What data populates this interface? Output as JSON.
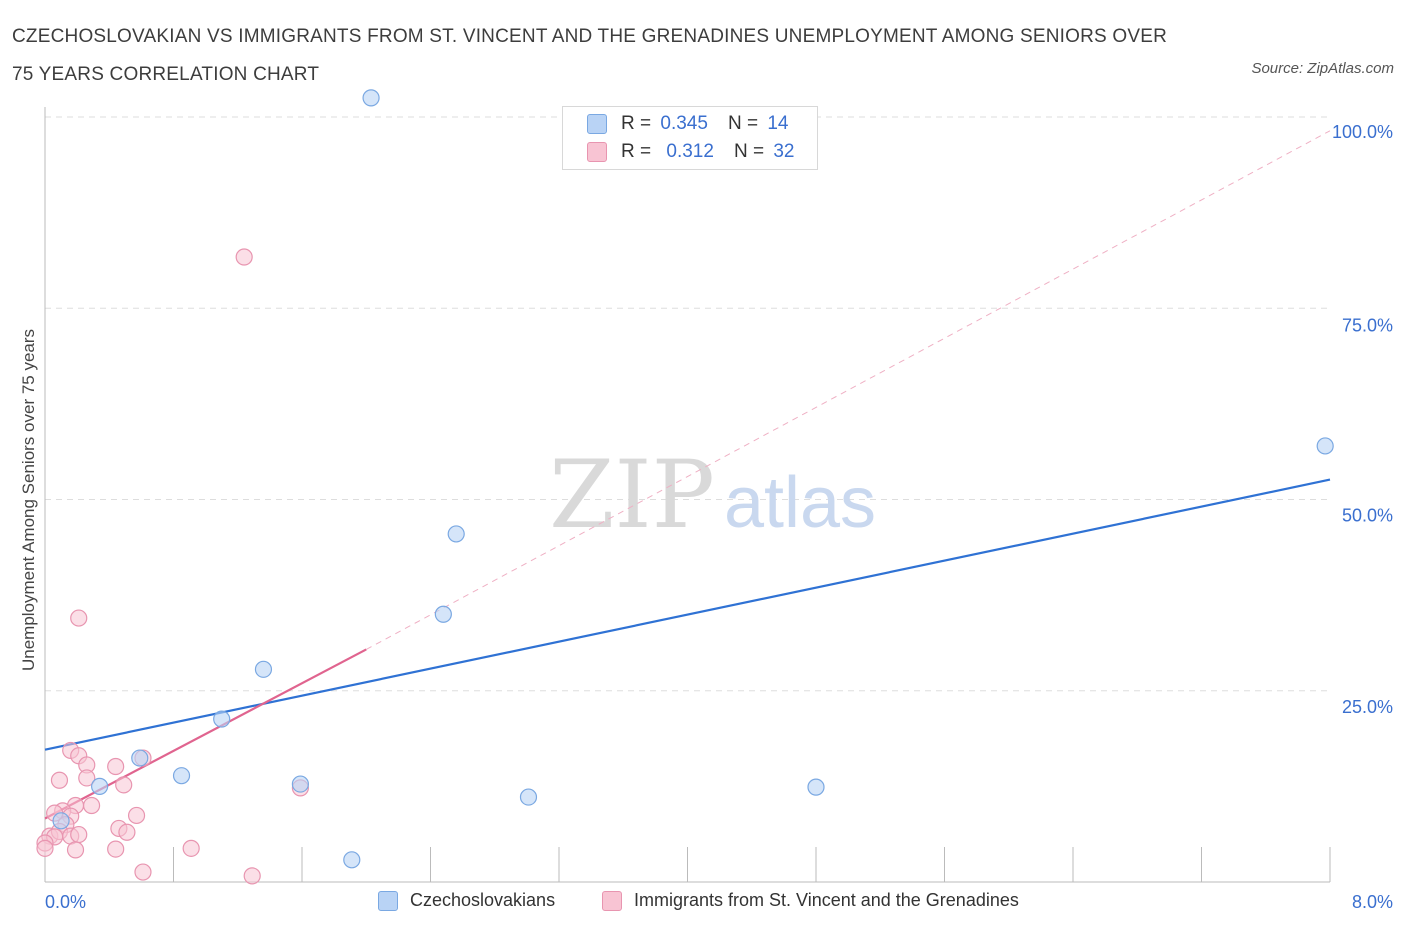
{
  "header": {
    "title": "CZECHOSLOVAKIAN VS IMMIGRANTS FROM ST. VINCENT AND THE GRENADINES UNEMPLOYMENT AMONG SENIORS OVER 75 YEARS CORRELATION CHART",
    "source": "Source: ZipAtlas.com"
  },
  "watermark": {
    "zip": "ZIP",
    "atlas": "atlas"
  },
  "legend": {
    "rows": [
      {
        "r_label": "R =",
        "r_value": "0.345",
        "n_label": "N =",
        "n_value": "14"
      },
      {
        "r_label": "R =",
        "r_value": "0.312",
        "n_label": "N =",
        "n_value": "32"
      }
    ]
  },
  "bottom_legend": {
    "series1": "Czechoslovakians",
    "series2": "Immigrants from St. Vincent and the Grenadines"
  },
  "colors": {
    "blue_fill": "#b9d3f5",
    "blue_stroke": "#7aa8e2",
    "blue_line": "#2f72d4",
    "pink_fill": "#f8c4d3",
    "pink_stroke": "#e895b0",
    "pink_line": "#e0648f",
    "axis_text": "#3a6fcf",
    "grid": "#dddddd"
  },
  "chart_data": {
    "type": "scatter",
    "title": "CZECHOSLOVAKIAN VS IMMIGRANTS FROM ST. VINCENT AND THE GRENADINES UNEMPLOYMENT AMONG SENIORS OVER 75 YEARS CORRELATION CHART",
    "xlabel": "",
    "ylabel": "Unemployment Among Seniors over 75 years",
    "xlim": [
      0,
      8
    ],
    "ylim": [
      0,
      100
    ],
    "x_tick_labels": [
      "0.0%",
      "8.0%"
    ],
    "y_tick_labels": [
      "100.0%",
      "75.0%",
      "50.0%",
      "25.0%"
    ],
    "y_ticks": [
      100,
      75,
      50,
      25
    ],
    "grid": true,
    "legend_position": "top-center",
    "series": [
      {
        "name": "Czechoslovakians",
        "r": 0.345,
        "n": 14,
        "points": [
          [
            2.03,
            102.5
          ],
          [
            7.97,
            57.0
          ],
          [
            2.56,
            45.5
          ],
          [
            2.48,
            35.0
          ],
          [
            1.36,
            27.8
          ],
          [
            1.1,
            21.3
          ],
          [
            0.59,
            16.2
          ],
          [
            0.85,
            13.9
          ],
          [
            0.34,
            12.5
          ],
          [
            1.59,
            12.8
          ],
          [
            4.8,
            12.4
          ],
          [
            3.01,
            11.1
          ],
          [
            1.91,
            2.9
          ],
          [
            0.1,
            8.0
          ]
        ],
        "trend": {
          "x": [
            0,
            8
          ],
          "y": [
            17.3,
            52.6
          ]
        }
      },
      {
        "name": "Immigrants from St. Vincent and the Grenadines",
        "r": 0.312,
        "n": 32,
        "points": [
          [
            1.24,
            81.7
          ],
          [
            0.21,
            34.5
          ],
          [
            0.16,
            17.2
          ],
          [
            0.21,
            16.5
          ],
          [
            0.61,
            16.2
          ],
          [
            0.26,
            15.3
          ],
          [
            0.44,
            15.1
          ],
          [
            0.09,
            13.3
          ],
          [
            0.26,
            13.6
          ],
          [
            0.49,
            12.7
          ],
          [
            1.59,
            12.3
          ],
          [
            0.19,
            10.0
          ],
          [
            0.29,
            10.0
          ],
          [
            0.11,
            9.3
          ],
          [
            0.06,
            9.0
          ],
          [
            0.16,
            8.6
          ],
          [
            0.57,
            8.7
          ],
          [
            0.13,
            7.5
          ],
          [
            0.46,
            7.0
          ],
          [
            0.51,
            6.5
          ],
          [
            0.03,
            6.0
          ],
          [
            0.09,
            6.6
          ],
          [
            0.16,
            6.0
          ],
          [
            0.06,
            5.9
          ],
          [
            0.21,
            6.2
          ],
          [
            0.0,
            5.1
          ],
          [
            0.19,
            4.2
          ],
          [
            0.44,
            4.3
          ],
          [
            0.0,
            4.4
          ],
          [
            0.91,
            4.4
          ],
          [
            0.61,
            1.3
          ],
          [
            1.29,
            0.8
          ]
        ],
        "trend": {
          "x": [
            0,
            2.0
          ],
          "y": [
            8.3,
            30.4
          ]
        },
        "trend_extension": {
          "x": [
            2.0,
            8
          ],
          "y": [
            30.4,
            98.2
          ]
        }
      }
    ]
  }
}
